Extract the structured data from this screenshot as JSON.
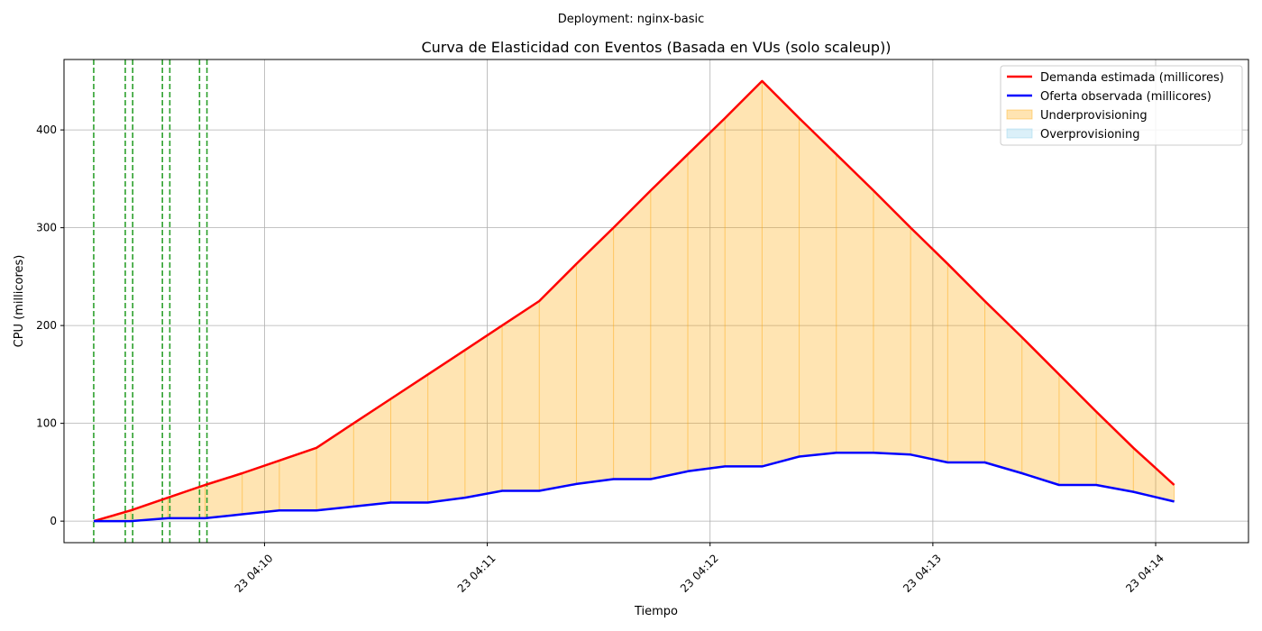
{
  "chart_data": {
    "type": "line",
    "suptitle": "Deployment: nginx-basic",
    "title": "Curva de Elasticidad con Eventos (Basada en VUs (solo scaleup))",
    "xlabel": "Tiempo",
    "ylabel": "CPU (millicores)",
    "x_ticks": [
      "23 04:10",
      "23 04:11",
      "23 04:12",
      "23 04:13",
      "23 04:14"
    ],
    "x_tick_seconds": [
      600,
      660,
      720,
      780,
      840
    ],
    "y_ticks": [
      0,
      100,
      200,
      300,
      400
    ],
    "xlim_seconds": [
      546,
      865
    ],
    "ylim": [
      -22,
      472
    ],
    "grid": true,
    "legend_position": "top-right",
    "x_seconds": [
      554,
      564,
      574,
      584,
      594,
      604,
      614,
      624,
      634,
      644,
      654,
      664,
      674,
      684,
      694,
      704,
      714,
      724,
      734,
      744,
      754,
      764,
      774,
      784,
      794,
      804,
      814,
      824,
      834,
      845
    ],
    "series": [
      {
        "name": "Demanda estimada (millicores)",
        "color": "#ff0000",
        "values": [
          0,
          11,
          24,
          37,
          49,
          62,
          75,
          100,
          125,
          150,
          175,
          200,
          225,
          263,
          300,
          338,
          375,
          412,
          450,
          412,
          375,
          338,
          300,
          263,
          225,
          188,
          150,
          112,
          75,
          37
        ]
      },
      {
        "name": "Oferta observada (millicores)",
        "color": "#0000ff",
        "values": [
          0,
          0,
          3,
          3,
          7,
          11,
          11,
          15,
          19,
          19,
          24,
          31,
          31,
          38,
          43,
          43,
          51,
          56,
          56,
          66,
          70,
          70,
          68,
          60,
          60,
          49,
          37,
          37,
          30,
          20
        ]
      }
    ],
    "areas": [
      {
        "name": "Underprovisioning",
        "color": "#ffa500",
        "between": [
          "Oferta observada (millicores)",
          "Demanda estimada (millicores)"
        ]
      },
      {
        "name": "Overprovisioning",
        "color": "#87ceeb"
      }
    ],
    "events": {
      "color": "#2ca02c",
      "x_seconds": [
        554,
        562.5,
        564.5,
        572.5,
        574.5,
        582.5,
        584.5
      ]
    }
  }
}
